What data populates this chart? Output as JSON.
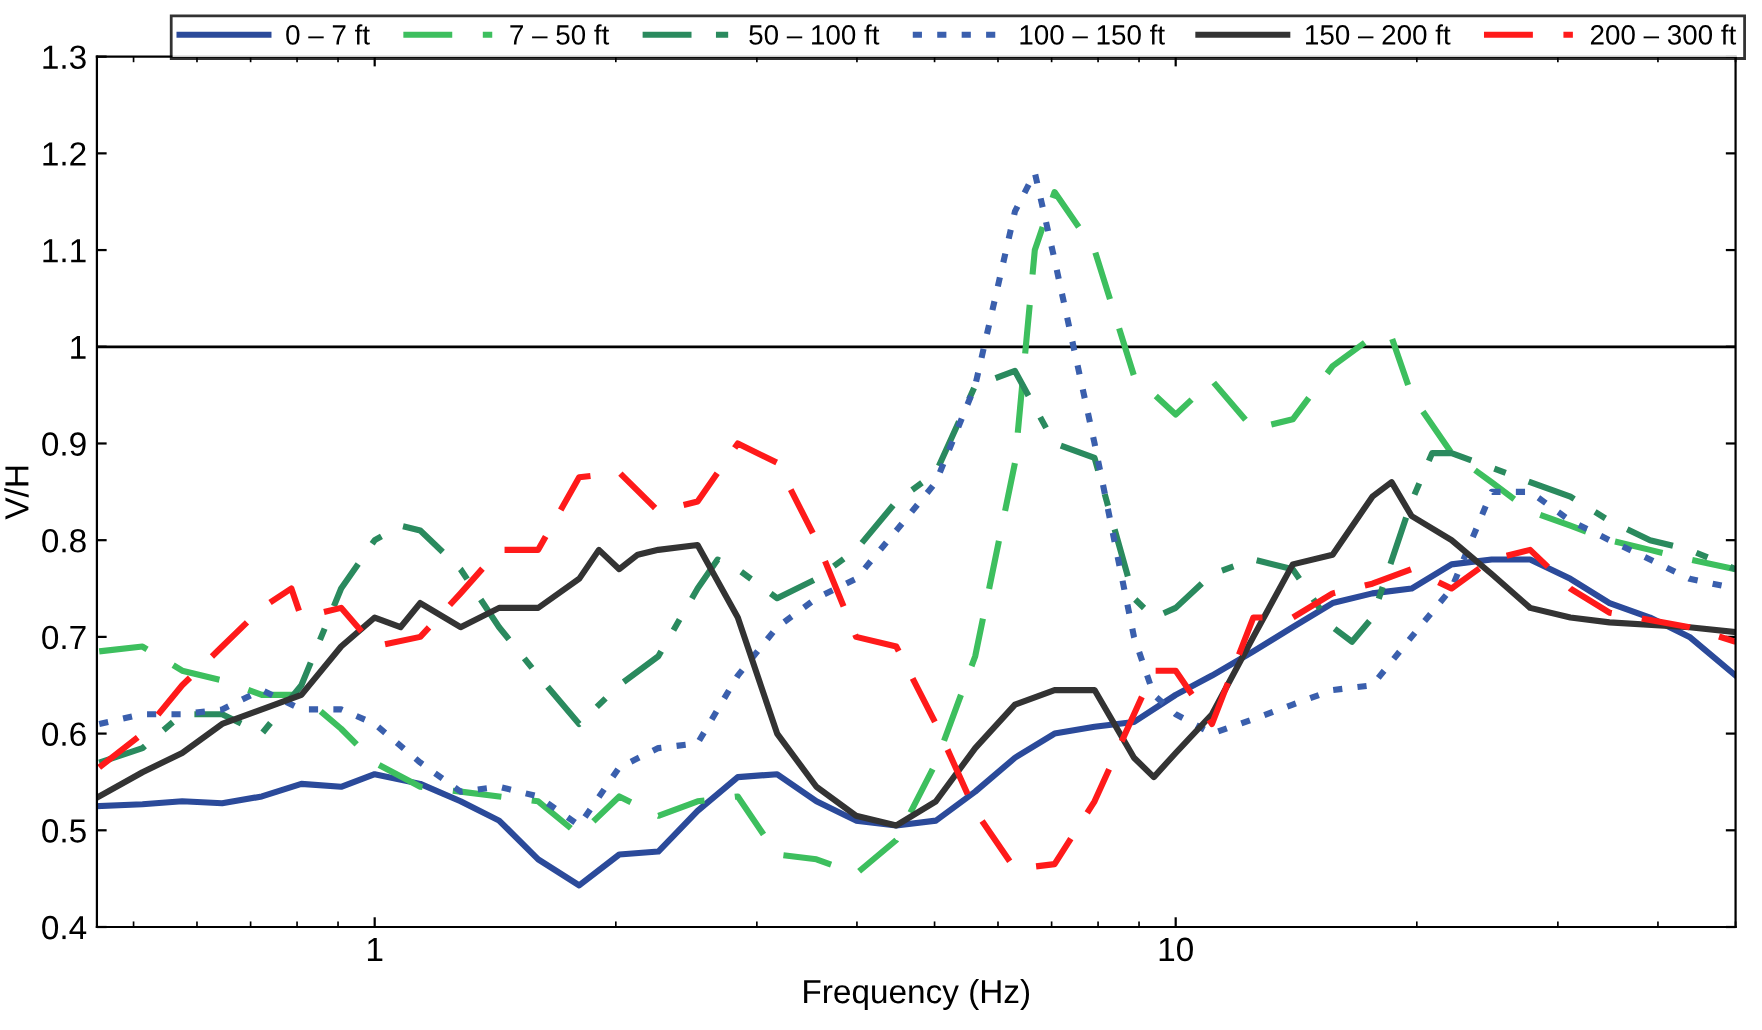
{
  "chart_data": {
    "type": "line",
    "xlabel": "Frequency (Hz)",
    "ylabel": "V/H",
    "log": "x",
    "xlim": [
      0.45,
      50
    ],
    "xticks": [
      1,
      10
    ],
    "ylim": [
      0.4,
      1.3
    ],
    "yticks": [
      0.4,
      0.5,
      0.6,
      0.7,
      0.8,
      0.9,
      1,
      1.1,
      1.2,
      1.3
    ],
    "grid": false,
    "legend": "top",
    "marker": "none",
    "ref_lines": [
      {
        "axis": "y",
        "value": 1,
        "color": "#000000",
        "line_style": "solid"
      }
    ],
    "series": [
      {
        "name": "0 – 7 ft",
        "color": "#2b4a9a",
        "line_style": "solid",
        "x": [
          0.453,
          0.513,
          0.575,
          0.645,
          0.723,
          0.81,
          0.908,
          1.0,
          1.14,
          1.28,
          1.43,
          1.6,
          1.8,
          2.02,
          2.26,
          2.53,
          2.84,
          3.18,
          3.56,
          3.99,
          4.48,
          5.02,
          5.62,
          6.3,
          7.06,
          7.92,
          8.87,
          10,
          11.1,
          12.5,
          14.0,
          15.7,
          17.6,
          19.7,
          22.1,
          24.8,
          27.7,
          31.1,
          34.8,
          39.1,
          43.8,
          50
        ],
        "values": [
          0.525,
          0.527,
          0.53,
          0.528,
          0.535,
          0.548,
          0.545,
          0.558,
          0.548,
          0.53,
          0.51,
          0.47,
          0.443,
          0.475,
          0.478,
          0.52,
          0.555,
          0.558,
          0.53,
          0.51,
          0.505,
          0.51,
          0.54,
          0.575,
          0.6,
          0.607,
          0.612,
          0.64,
          0.66,
          0.685,
          0.71,
          0.735,
          0.745,
          0.75,
          0.775,
          0.78,
          0.78,
          0.76,
          0.735,
          0.72,
          0.7,
          0.66
        ]
      },
      {
        "name": "7 – 50 ft",
        "color": "#3dbf5e",
        "line_style": "dashed",
        "x": [
          0.453,
          0.513,
          0.575,
          0.645,
          0.723,
          0.81,
          0.908,
          1.0,
          1.14,
          1.28,
          1.43,
          1.6,
          1.8,
          2.02,
          2.26,
          2.53,
          2.84,
          3.18,
          3.56,
          3.99,
          4.48,
          5.02,
          5.62,
          6.3,
          6.67,
          7.06,
          7.92,
          8.87,
          10,
          11.1,
          12.5,
          14.0,
          15.7,
          17.6,
          18.6,
          19.7,
          22.1,
          24.8,
          27.7,
          31.1,
          34.8,
          39.1,
          43.8,
          50
        ],
        "values": [
          0.685,
          0.69,
          0.665,
          0.655,
          0.64,
          0.64,
          0.605,
          0.57,
          0.545,
          0.54,
          0.535,
          0.53,
          0.495,
          0.535,
          0.515,
          0.53,
          0.535,
          0.475,
          0.47,
          0.455,
          0.49,
          0.57,
          0.68,
          0.88,
          1.1,
          1.16,
          1.1,
          0.97,
          0.93,
          0.965,
          0.915,
          0.925,
          0.98,
          1.01,
          1.01,
          0.95,
          0.89,
          0.86,
          0.83,
          0.815,
          0.8,
          0.79,
          0.78,
          0.77
        ]
      },
      {
        "name": "50 – 100 ft",
        "color": "#2a8a5e",
        "line_style": "dashdot",
        "x": [
          0.453,
          0.513,
          0.575,
          0.645,
          0.723,
          0.81,
          0.908,
          1.0,
          1.077,
          1.14,
          1.28,
          1.43,
          1.6,
          1.8,
          2.02,
          2.26,
          2.53,
          2.68,
          2.84,
          3.18,
          3.56,
          3.99,
          4.48,
          5.02,
          5.62,
          6.3,
          7.06,
          7.92,
          8.87,
          9.39,
          10,
          11.1,
          12.5,
          14.0,
          15.7,
          16.6,
          17.6,
          19.7,
          20.9,
          22.1,
          24.8,
          27.7,
          31.1,
          34.8,
          39.1,
          43.8,
          50
        ],
        "values": [
          0.57,
          0.585,
          0.62,
          0.62,
          0.6,
          0.65,
          0.75,
          0.8,
          0.815,
          0.81,
          0.77,
          0.71,
          0.66,
          0.61,
          0.65,
          0.68,
          0.75,
          0.78,
          0.77,
          0.74,
          0.76,
          0.79,
          0.84,
          0.87,
          0.96,
          0.975,
          0.9,
          0.885,
          0.74,
          0.72,
          0.73,
          0.765,
          0.78,
          0.77,
          0.71,
          0.695,
          0.72,
          0.84,
          0.89,
          0.89,
          0.875,
          0.86,
          0.845,
          0.82,
          0.8,
          0.79,
          0.77
        ]
      },
      {
        "name": "100 – 150 ft",
        "color": "#3a5fad",
        "line_style": "dotted",
        "x": [
          0.453,
          0.513,
          0.575,
          0.645,
          0.723,
          0.81,
          0.908,
          1.0,
          1.14,
          1.28,
          1.43,
          1.6,
          1.8,
          2.02,
          2.26,
          2.53,
          2.84,
          3.18,
          3.56,
          3.99,
          4.48,
          5.02,
          5.62,
          6.3,
          6.67,
          7.06,
          7.92,
          8.87,
          9.39,
          10,
          11.1,
          12.5,
          14.0,
          15.7,
          17.6,
          19.7,
          22.1,
          24.8,
          27.7,
          31.1,
          34.8,
          39.1,
          43.8,
          50
        ],
        "values": [
          0.61,
          0.62,
          0.62,
          0.625,
          0.645,
          0.625,
          0.625,
          0.61,
          0.57,
          0.54,
          0.545,
          0.535,
          0.505,
          0.565,
          0.585,
          0.59,
          0.66,
          0.71,
          0.74,
          0.76,
          0.81,
          0.86,
          0.96,
          1.14,
          1.18,
          1.09,
          0.9,
          0.7,
          0.64,
          0.62,
          0.6,
          0.615,
          0.63,
          0.645,
          0.65,
          0.7,
          0.75,
          0.85,
          0.85,
          0.82,
          0.8,
          0.78,
          0.76,
          0.75
        ]
      },
      {
        "name": "150 – 200 ft",
        "color": "#333333",
        "line_style": "solid",
        "x": [
          0.453,
          0.513,
          0.575,
          0.645,
          0.723,
          0.81,
          0.908,
          1.0,
          1.077,
          1.14,
          1.28,
          1.43,
          1.6,
          1.8,
          1.905,
          2.02,
          2.13,
          2.26,
          2.53,
          2.84,
          3.18,
          3.56,
          3.99,
          4.48,
          5.02,
          5.62,
          6.3,
          7.06,
          7.92,
          8.87,
          9.39,
          10,
          11.1,
          12.5,
          14.0,
          15.7,
          17.6,
          18.6,
          19.7,
          22.1,
          24.8,
          27.7,
          31.1,
          34.8,
          43.8,
          50
        ],
        "values": [
          0.535,
          0.56,
          0.58,
          0.61,
          0.625,
          0.64,
          0.69,
          0.72,
          0.71,
          0.735,
          0.71,
          0.73,
          0.73,
          0.76,
          0.79,
          0.77,
          0.785,
          0.79,
          0.795,
          0.72,
          0.6,
          0.545,
          0.515,
          0.505,
          0.53,
          0.585,
          0.63,
          0.645,
          0.645,
          0.575,
          0.555,
          0.58,
          0.62,
          0.7,
          0.775,
          0.785,
          0.845,
          0.86,
          0.825,
          0.8,
          0.765,
          0.73,
          0.72,
          0.715,
          0.71,
          0.705
        ]
      },
      {
        "name": "200 – 300 ft",
        "color": "#ff1a1a",
        "line_style": "dashed",
        "x": [
          0.453,
          0.513,
          0.575,
          0.645,
          0.723,
          0.787,
          0.81,
          0.908,
          1.0,
          1.14,
          1.28,
          1.43,
          1.6,
          1.8,
          2.02,
          2.26,
          2.53,
          2.84,
          3.18,
          3.56,
          3.99,
          4.48,
          5.02,
          5.62,
          6.3,
          7.06,
          7.92,
          8.87,
          9.39,
          10,
          11.1,
          12.5,
          14.0,
          15.7,
          17.6,
          19.7,
          22.1,
          24.8,
          27.7,
          31.1,
          34.8,
          43.8,
          50
        ],
        "values": [
          0.565,
          0.6,
          0.65,
          0.69,
          0.73,
          0.75,
          0.72,
          0.73,
          0.69,
          0.7,
          0.745,
          0.79,
          0.79,
          0.865,
          0.87,
          0.83,
          0.84,
          0.9,
          0.88,
          0.8,
          0.7,
          0.69,
          0.61,
          0.52,
          0.46,
          0.465,
          0.53,
          0.62,
          0.665,
          0.665,
          0.61,
          0.72,
          0.72,
          0.745,
          0.755,
          0.77,
          0.75,
          0.78,
          0.79,
          0.75,
          0.725,
          0.71,
          0.695
        ]
      }
    ]
  }
}
